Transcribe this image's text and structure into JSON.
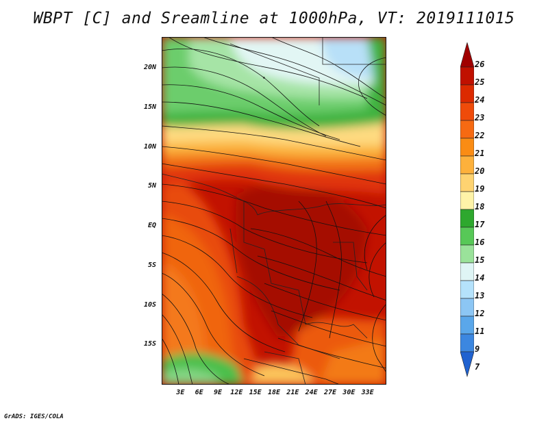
{
  "title": "WBPT [C] and Sreamline at 1000hPa, VT: 2019111015",
  "credit": "GrADS: IGES/COLA",
  "map": {
    "variable": "Wet-bulb potential temperature [C] with 1000hPa streamlines",
    "lon_range": [
      0,
      36
    ],
    "lat_range": [
      -20,
      24
    ],
    "lat_ticks": [
      "20N",
      "15N",
      "10N",
      "5N",
      "EQ",
      "5S",
      "10S",
      "15S"
    ],
    "lat_values": [
      20,
      15,
      10,
      5,
      0,
      -5,
      -10,
      -15
    ],
    "lon_ticks": [
      "3E",
      "6E",
      "9E",
      "12E",
      "15E",
      "18E",
      "21E",
      "24E",
      "27E",
      "30E",
      "33E"
    ],
    "lon_values": [
      3,
      6,
      9,
      12,
      15,
      18,
      21,
      24,
      27,
      30,
      33
    ]
  },
  "colorbar": {
    "labels": [
      "26",
      "25",
      "24",
      "23",
      "22",
      "21",
      "20",
      "19",
      "18",
      "17",
      "16",
      "15",
      "14",
      "13",
      "12",
      "11",
      "9",
      "7"
    ],
    "colors": [
      "#a00000",
      "#c01000",
      "#dc2a00",
      "#ef4b0a",
      "#f66a12",
      "#fa8c14",
      "#fdb13c",
      "#fed371",
      "#fff3a8",
      "#2ea82e",
      "#57c857",
      "#9ae29a",
      "#dff5f5",
      "#b5e2fb",
      "#8cc6f4",
      "#5aa7ea",
      "#3c87e0",
      "#2062d0"
    ]
  }
}
